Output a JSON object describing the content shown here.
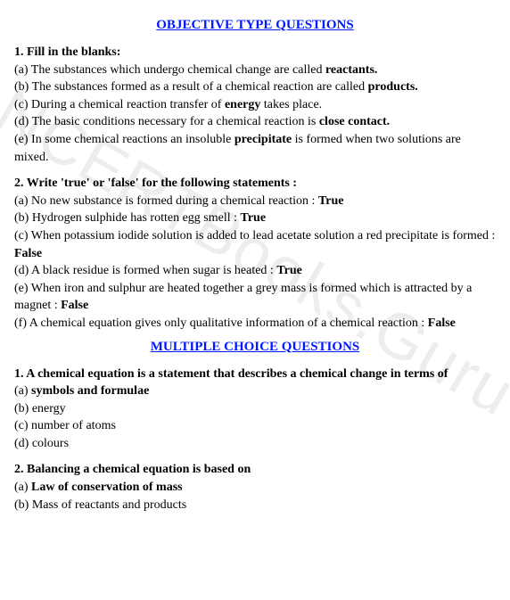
{
  "watermark": "NCERTBooks.Guru",
  "section1": {
    "heading": "OBJECTIVE TYPE QUESTIONS",
    "q1": {
      "title": "1. Fill in the blanks:",
      "a_pre": "(a) The substances which undergo chemical change are called ",
      "a_bold": "reactants.",
      "b_pre": "(b) The substances formed as a result of a chemical reaction are called ",
      "b_bold": "products.",
      "c_pre": "(c) During a chemical reaction transfer of ",
      "c_bold": "energy",
      "c_post": " takes place.",
      "d_pre": "(d) The basic conditions necessary for a chemical reaction is ",
      "d_bold": "close contact.",
      "e_pre": "(e) In some chemical reactions an insoluble ",
      "e_bold": "precipitate",
      "e_post": " is formed when two solutions are mixed."
    },
    "q2": {
      "title": "2. Write 'true' or 'false' for the following statements :",
      "a_pre": "(a) No new substance is formed during a chemical reaction : ",
      "a_bold": "True",
      "b_pre": "(b) Hydrogen sulphide has rotten egg smell : ",
      "b_bold": "True",
      "c_pre": "(c) When potassium iodide solution is added to lead acetate solution a red precipitate is formed : ",
      "c_bold": "False",
      "d_pre": "(d) A black residue is formed when sugar is heated : ",
      "d_bold": "True",
      "e_pre": "(e) When iron and sulphur are heated together a grey mass is formed which is attracted by a magnet : ",
      "e_bold": "False",
      "f_pre": "(f) A chemical equation gives only qualitative information of a chemical reaction : ",
      "f_bold": "False"
    }
  },
  "section2": {
    "heading": "MULTIPLE CHOICE QUESTIONS",
    "q1": {
      "title": "1. A chemical equation is a statement that describes a chemical change in terms of",
      "a_pre": "(a) ",
      "a_bold": "symbols and formulae",
      "b": "(b) energy",
      "c": "(c) number of atoms",
      "d": "(d) colours"
    },
    "q2": {
      "title": "2. Balancing a chemical equation is based on",
      "a_pre": "(a) ",
      "a_bold": "Law of conservation of mass",
      "b": "(b) Mass of reactants and products"
    }
  }
}
